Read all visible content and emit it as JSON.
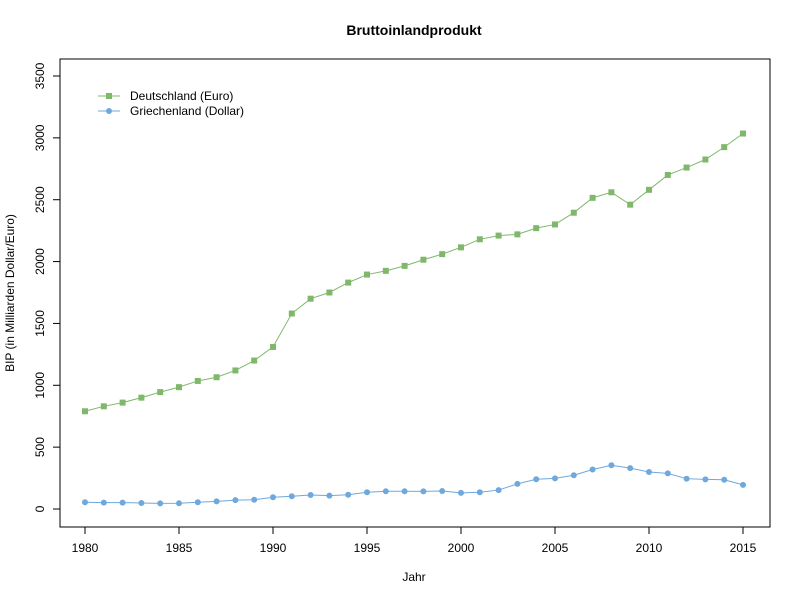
{
  "colors": {
    "series1": "#7fb86b",
    "series2": "#6fa8dc",
    "axis": "#000000",
    "frame": "#000000"
  },
  "chart_data": {
    "type": "line",
    "title": "Bruttoinlandprodukt",
    "xlabel": "Jahr",
    "ylabel": "BIP (in Milliarden Dollar/Euro)",
    "xlim": [
      1980,
      2015
    ],
    "ylim": [
      0,
      3500
    ],
    "xticks": [
      1980,
      1985,
      1990,
      1995,
      2000,
      2005,
      2010,
      2015
    ],
    "yticks": [
      0,
      500,
      1000,
      1500,
      2000,
      2500,
      3000,
      3500
    ],
    "grid": false,
    "legend_position": "top-left",
    "x": [
      1980,
      1981,
      1982,
      1983,
      1984,
      1985,
      1986,
      1987,
      1988,
      1989,
      1990,
      1991,
      1992,
      1993,
      1994,
      1995,
      1996,
      1997,
      1998,
      1999,
      2000,
      2001,
      2002,
      2003,
      2004,
      2005,
      2006,
      2007,
      2008,
      2009,
      2010,
      2011,
      2012,
      2013,
      2014,
      2015
    ],
    "series": [
      {
        "name": "Deutschland (Euro)",
        "marker": "square",
        "values": [
          790,
          830,
          860,
          900,
          945,
          985,
          1035,
          1065,
          1120,
          1200,
          1310,
          1580,
          1700,
          1750,
          1830,
          1895,
          1925,
          1965,
          2015,
          2060,
          2115,
          2180,
          2210,
          2220,
          2270,
          2300,
          2395,
          2515,
          2560,
          2460,
          2580,
          2700,
          2760,
          2825,
          2925,
          3035
        ]
      },
      {
        "name": "Griechenland (Dollar)",
        "marker": "circle",
        "values": [
          55,
          52,
          52,
          48,
          45,
          46,
          55,
          62,
          72,
          75,
          95,
          103,
          113,
          108,
          115,
          135,
          143,
          143,
          142,
          145,
          130,
          135,
          153,
          203,
          240,
          248,
          273,
          319,
          354,
          330,
          299,
          288,
          245,
          239,
          236,
          195
        ]
      }
    ]
  }
}
